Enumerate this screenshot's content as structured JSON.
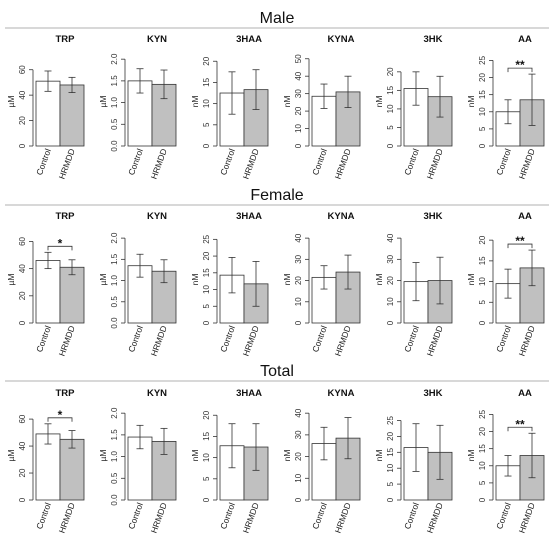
{
  "colors": {
    "control": "#ffffff",
    "hrmdd": "#c0c0c0",
    "stroke": "#333333",
    "separator": "#b0b0b0"
  },
  "chart_data": [
    {
      "section": "Male",
      "panels": [
        {
          "title": "TRP",
          "type": "bar",
          "ylabel": "µM",
          "ylim": [
            0,
            70
          ],
          "yticks": [
            0,
            20,
            40,
            60
          ],
          "categories": [
            "Control",
            "HRMDD"
          ],
          "values": [
            51,
            48
          ],
          "errors": [
            8,
            6
          ],
          "significance": ""
        },
        {
          "title": "KYN",
          "type": "bar",
          "ylabel": "µM",
          "ylim": [
            0,
            2.05
          ],
          "yticks": [
            0.0,
            0.5,
            1.0,
            1.5,
            2.0
          ],
          "categories": [
            "Control",
            "HRMDD"
          ],
          "values": [
            1.5,
            1.42
          ],
          "errors": [
            0.28,
            0.33
          ],
          "significance": ""
        },
        {
          "title": "3HAA",
          "type": "bar",
          "ylabel": "nM",
          "ylim": [
            0,
            21
          ],
          "yticks": [
            0,
            5,
            10,
            15,
            20
          ],
          "categories": [
            "Control",
            "HRMDD"
          ],
          "values": [
            12.5,
            13.3
          ],
          "errors": [
            5.0,
            4.7
          ],
          "significance": ""
        },
        {
          "title": "KYNA",
          "type": "bar",
          "ylabel": "nM",
          "ylim": [
            0,
            51
          ],
          "yticks": [
            0,
            10,
            20,
            30,
            40,
            50
          ],
          "categories": [
            "Control",
            "HRMDD"
          ],
          "values": [
            28.5,
            31
          ],
          "errors": [
            7,
            9
          ],
          "significance": ""
        },
        {
          "title": "3HK",
          "type": "bar",
          "ylabel": "nM",
          "ylim": [
            0,
            24
          ],
          "yticks": [
            0,
            5,
            10,
            15,
            20
          ],
          "categories": [
            "Control",
            "HRMDD"
          ],
          "values": [
            15.5,
            13.3
          ],
          "errors": [
            4.5,
            5.5
          ],
          "significance": ""
        },
        {
          "title": "AA",
          "type": "bar",
          "ylabel": "nM",
          "ylim": [
            0,
            26
          ],
          "yticks": [
            0,
            5,
            10,
            15,
            20,
            25
          ],
          "categories": [
            "Control",
            "HRMDD"
          ],
          "values": [
            10,
            13.5
          ],
          "errors": [
            3.5,
            7.5
          ],
          "significance": "**"
        }
      ]
    },
    {
      "section": "Female",
      "panels": [
        {
          "title": "TRP",
          "type": "bar",
          "ylabel": "µM",
          "ylim": [
            0,
            64
          ],
          "yticks": [
            0,
            20,
            40,
            60
          ],
          "categories": [
            "Control",
            "HRMDD"
          ],
          "values": [
            46,
            41
          ],
          "errors": [
            6,
            5.5
          ],
          "significance": "*"
        },
        {
          "title": "KYN",
          "type": "bar",
          "ylabel": "µM",
          "ylim": [
            0,
            2.05
          ],
          "yticks": [
            0.0,
            0.5,
            1.0,
            1.5,
            2.0
          ],
          "categories": [
            "Control",
            "HRMDD"
          ],
          "values": [
            1.35,
            1.22
          ],
          "errors": [
            0.27,
            0.27
          ],
          "significance": ""
        },
        {
          "title": "3HAA",
          "type": "bar",
          "ylabel": "nM",
          "ylim": [
            0,
            26
          ],
          "yticks": [
            0,
            5,
            10,
            15,
            20,
            25
          ],
          "categories": [
            "Control",
            "HRMDD"
          ],
          "values": [
            14.3,
            11.7
          ],
          "errors": [
            5.3,
            6.7
          ],
          "significance": ""
        },
        {
          "title": "KYNA",
          "type": "bar",
          "ylabel": "nM",
          "ylim": [
            0,
            41
          ],
          "yticks": [
            0,
            10,
            20,
            30,
            40
          ],
          "categories": [
            "Control",
            "HRMDD"
          ],
          "values": [
            21.5,
            24
          ],
          "errors": [
            5.5,
            8
          ],
          "significance": ""
        },
        {
          "title": "3HK",
          "type": "bar",
          "ylabel": "nM",
          "ylim": [
            0,
            41
          ],
          "yticks": [
            0,
            10,
            20,
            30,
            40
          ],
          "categories": [
            "Control",
            "HRMDD"
          ],
          "values": [
            19.5,
            20
          ],
          "errors": [
            9,
            11
          ],
          "significance": ""
        },
        {
          "title": "AA",
          "type": "bar",
          "ylabel": "nM",
          "ylim": [
            0,
            21
          ],
          "yticks": [
            0,
            5,
            10,
            15,
            20
          ],
          "categories": [
            "Control",
            "HRMDD"
          ],
          "values": [
            9.5,
            13.3
          ],
          "errors": [
            3.5,
            4.3
          ],
          "significance": "**"
        }
      ]
    },
    {
      "section": "Total",
      "panels": [
        {
          "title": "TRP",
          "type": "bar",
          "ylabel": "µM",
          "ylim": [
            0,
            66
          ],
          "yticks": [
            0,
            20,
            40,
            60
          ],
          "categories": [
            "Control",
            "HRMDD"
          ],
          "values": [
            49,
            45
          ],
          "errors": [
            7.5,
            6.5
          ],
          "significance": "*"
        },
        {
          "title": "KYN",
          "type": "bar",
          "ylabel": "µM",
          "ylim": [
            0,
            2.05
          ],
          "yticks": [
            0.0,
            0.5,
            1.0,
            1.5,
            2.0
          ],
          "categories": [
            "Control",
            "HRMDD"
          ],
          "values": [
            1.45,
            1.35
          ],
          "errors": [
            0.27,
            0.3
          ],
          "significance": ""
        },
        {
          "title": "3HAA",
          "type": "bar",
          "ylabel": "nM",
          "ylim": [
            0,
            21
          ],
          "yticks": [
            0,
            5,
            10,
            15,
            20
          ],
          "categories": [
            "Control",
            "HRMDD"
          ],
          "values": [
            12.8,
            12.5
          ],
          "errors": [
            5.2,
            5.5
          ],
          "significance": ""
        },
        {
          "title": "KYNA",
          "type": "bar",
          "ylabel": "nM",
          "ylim": [
            0,
            41
          ],
          "yticks": [
            0,
            10,
            20,
            30,
            40
          ],
          "categories": [
            "Control",
            "HRMDD"
          ],
          "values": [
            26,
            28.5
          ],
          "errors": [
            7.5,
            9.5
          ],
          "significance": ""
        },
        {
          "title": "3HK",
          "type": "bar",
          "ylabel": "nM",
          "ylim": [
            0,
            28
          ],
          "yticks": [
            0,
            5,
            10,
            15,
            20,
            25
          ],
          "categories": [
            "Control",
            "HRMDD"
          ],
          "values": [
            16.5,
            15
          ],
          "errors": [
            7.5,
            8.5
          ],
          "significance": ""
        },
        {
          "title": "AA",
          "type": "bar",
          "ylabel": "nM",
          "ylim": [
            0,
            26
          ],
          "yticks": [
            0,
            5,
            10,
            15,
            20,
            25
          ],
          "categories": [
            "Control",
            "HRMDD"
          ],
          "values": [
            10,
            13
          ],
          "errors": [
            3,
            6.5
          ],
          "significance": "**"
        }
      ]
    }
  ]
}
